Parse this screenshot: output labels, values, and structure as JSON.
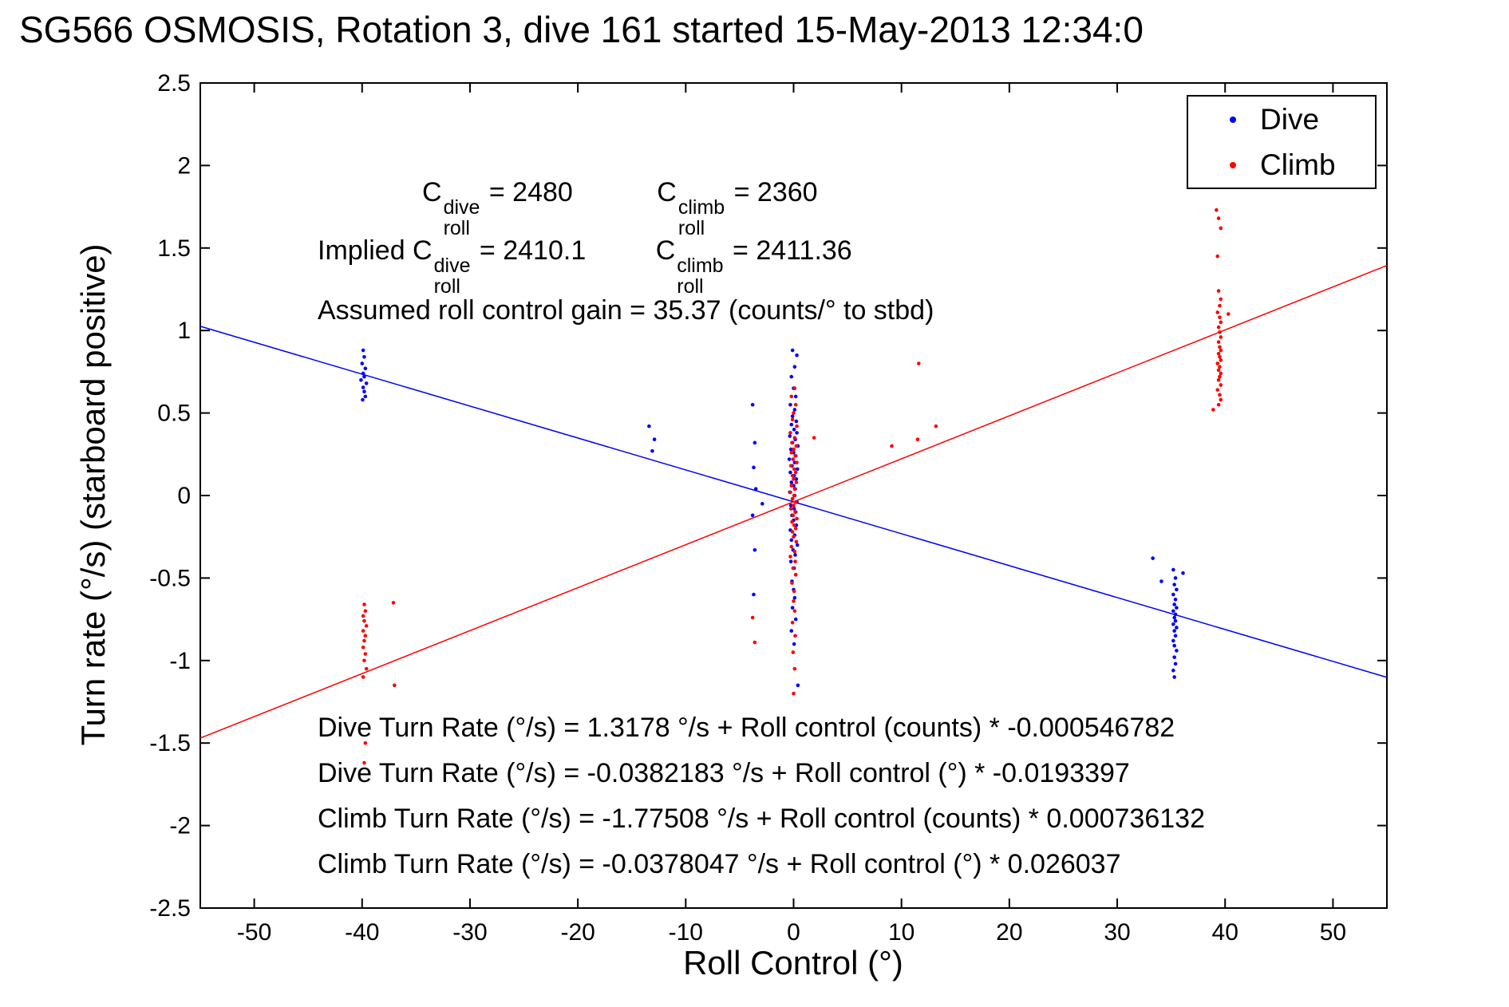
{
  "title": "SG566 OSMOSIS, Rotation 3, dive 161 started 15-May-2013 12:34:0",
  "axes": {
    "xlabel": "Roll Control (°)",
    "ylabel": "Turn rate (°/s) (starboard positive)"
  },
  "legend": {
    "items": [
      {
        "label": "Dive",
        "color": "#0000ff"
      },
      {
        "label": "Climb",
        "color": "#ff0000"
      }
    ]
  },
  "annotations": {
    "row1": {
      "dive": {
        "prefix": "C",
        "sup": "dive",
        "sub": "roll",
        "value": " = 2480"
      },
      "climb": {
        "prefix": "C",
        "sup": "climb",
        "sub": "roll",
        "value": " = 2360"
      }
    },
    "row2": {
      "dive": {
        "prefix": "Implied C",
        "sup": "dive",
        "sub": "roll",
        "value": " = 2410.1"
      },
      "climb": {
        "prefix": "C",
        "sup": "climb",
        "sub": "roll",
        "value": " = 2411.36"
      }
    },
    "gain": "Assumed roll control gain = 35.37 (counts/° to stbd)",
    "equations": [
      "Dive Turn Rate (°/s) = 1.3178 °/s + Roll control (counts) * -0.000546782",
      "Dive Turn Rate (°/s) = -0.0382183 °/s + Roll control (°) * -0.0193397",
      "Climb Turn Rate (°/s) = -1.77508 °/s + Roll control (counts) * 0.000736132",
      "Climb Turn Rate (°/s) = -0.0378047 °/s + Roll control (°) * 0.026037"
    ]
  },
  "chart_data": {
    "type": "scatter",
    "title": "SG566 OSMOSIS, Rotation 3, dive 161 started 15-May-2013 12:34:0",
    "xlabel": "Roll Control (°)",
    "ylabel": "Turn rate (°/s) (starboard positive)",
    "xlim": [
      -55,
      55
    ],
    "ylim": [
      -2.5,
      2.5
    ],
    "xticks": [
      -50,
      -40,
      -30,
      -20,
      -10,
      0,
      10,
      20,
      30,
      40,
      50
    ],
    "yticks": [
      -2.5,
      -2,
      -1.5,
      -1,
      -0.5,
      0,
      0.5,
      1,
      1.5,
      2,
      2.5
    ],
    "grid": false,
    "legend_position": "top-right",
    "fit_lines": [
      {
        "name": "dive-fit",
        "color": "#0000ff",
        "intercept": -0.0382183,
        "slope": -0.0193397
      },
      {
        "name": "climb-fit",
        "color": "#ff0000",
        "intercept": -0.0378047,
        "slope": 0.026037
      }
    ],
    "series": [
      {
        "name": "Dive",
        "color": "#0000ff",
        "points": [
          [
            -39.9,
            0.88
          ],
          [
            -39.8,
            0.84
          ],
          [
            -40.0,
            0.8
          ],
          [
            -39.7,
            0.77
          ],
          [
            -39.9,
            0.74
          ],
          [
            -39.8,
            0.72
          ],
          [
            -40.1,
            0.7
          ],
          [
            -39.6,
            0.68
          ],
          [
            -39.9,
            0.655
          ],
          [
            -39.8,
            0.63
          ],
          [
            -39.7,
            0.6
          ],
          [
            -39.95,
            0.58
          ],
          [
            -13.4,
            0.42
          ],
          [
            -12.9,
            0.34
          ],
          [
            -13.1,
            0.27
          ],
          [
            -3.8,
            0.55
          ],
          [
            -3.6,
            0.32
          ],
          [
            -3.7,
            0.17
          ],
          [
            -3.5,
            0.04
          ],
          [
            -3.8,
            -0.12
          ],
          [
            -3.6,
            -0.33
          ],
          [
            -3.7,
            -0.6
          ],
          [
            -2.9,
            -0.05
          ],
          [
            -0.1,
            0.88
          ],
          [
            0.3,
            0.85
          ],
          [
            0.1,
            0.78
          ],
          [
            -0.2,
            0.72
          ],
          [
            0.0,
            0.65
          ],
          [
            0.2,
            0.6
          ],
          [
            -0.3,
            0.55
          ],
          [
            0.1,
            0.52
          ],
          [
            -0.1,
            0.48
          ],
          [
            0.25,
            0.45
          ],
          [
            -0.2,
            0.43
          ],
          [
            0.05,
            0.4
          ],
          [
            0.3,
            0.38
          ],
          [
            -0.35,
            0.36
          ],
          [
            0.15,
            0.34
          ],
          [
            -0.1,
            0.32
          ],
          [
            0.4,
            0.3
          ],
          [
            -0.25,
            0.28
          ],
          [
            0.0,
            0.26
          ],
          [
            0.2,
            0.24
          ],
          [
            -0.4,
            0.22
          ],
          [
            0.1,
            0.2
          ],
          [
            -0.15,
            0.18
          ],
          [
            0.35,
            0.16
          ],
          [
            -0.3,
            0.14
          ],
          [
            0.05,
            0.12
          ],
          [
            0.25,
            0.1
          ],
          [
            -0.2,
            0.08
          ],
          [
            0.0,
            0.06
          ],
          [
            0.15,
            0.04
          ],
          [
            -0.35,
            0.02
          ],
          [
            0.1,
            0.0
          ],
          [
            -0.1,
            -0.02
          ],
          [
            0.3,
            -0.04
          ],
          [
            -0.25,
            -0.06
          ],
          [
            0.05,
            -0.08
          ],
          [
            0.2,
            -0.1
          ],
          [
            -0.15,
            -0.12
          ],
          [
            0.0,
            -0.15
          ],
          [
            0.25,
            -0.18
          ],
          [
            -0.3,
            -0.21
          ],
          [
            0.1,
            -0.24
          ],
          [
            -0.2,
            -0.27
          ],
          [
            0.35,
            -0.3
          ],
          [
            -0.05,
            -0.33
          ],
          [
            0.15,
            -0.36
          ],
          [
            -0.25,
            -0.4
          ],
          [
            0.05,
            -0.44
          ],
          [
            0.2,
            -0.48
          ],
          [
            -0.15,
            -0.52
          ],
          [
            0.0,
            -0.57
          ],
          [
            0.1,
            -0.62
          ],
          [
            -0.1,
            -0.68
          ],
          [
            0.2,
            -0.75
          ],
          [
            -0.2,
            -0.82
          ],
          [
            0.05,
            -0.9
          ],
          [
            0.4,
            -1.15
          ],
          [
            33.3,
            -0.38
          ],
          [
            34.1,
            -0.52
          ],
          [
            36.1,
            -0.47
          ],
          [
            35.2,
            -0.45
          ],
          [
            35.4,
            -0.5
          ],
          [
            35.3,
            -0.54
          ],
          [
            35.5,
            -0.57
          ],
          [
            35.2,
            -0.6
          ],
          [
            35.4,
            -0.63
          ],
          [
            35.3,
            -0.66
          ],
          [
            35.5,
            -0.68
          ],
          [
            35.2,
            -0.7
          ],
          [
            35.4,
            -0.72
          ],
          [
            35.3,
            -0.74
          ],
          [
            35.4,
            -0.76
          ],
          [
            35.2,
            -0.78
          ],
          [
            35.5,
            -0.8
          ],
          [
            35.3,
            -0.82
          ],
          [
            35.4,
            -0.85
          ],
          [
            35.2,
            -0.88
          ],
          [
            35.3,
            -0.91
          ],
          [
            35.5,
            -0.94
          ],
          [
            35.3,
            -0.98
          ],
          [
            35.4,
            -1.02
          ],
          [
            35.2,
            -1.06
          ],
          [
            35.3,
            -1.1
          ]
        ]
      },
      {
        "name": "Climb",
        "color": "#ff0000",
        "points": [
          [
            -39.8,
            -0.66
          ],
          [
            -39.7,
            -0.7
          ],
          [
            -39.9,
            -0.73
          ],
          [
            -39.8,
            -0.76
          ],
          [
            -39.6,
            -0.79
          ],
          [
            -39.9,
            -0.82
          ],
          [
            -39.7,
            -0.85
          ],
          [
            -39.8,
            -0.88
          ],
          [
            -39.9,
            -0.92
          ],
          [
            -39.7,
            -0.96
          ],
          [
            -39.8,
            -1.0
          ],
          [
            -39.6,
            -1.05
          ],
          [
            -39.9,
            -1.1
          ],
          [
            -37.1,
            -0.65
          ],
          [
            -37.0,
            -1.15
          ],
          [
            -39.7,
            -1.5
          ],
          [
            -39.8,
            -1.62
          ],
          [
            -3.8,
            -0.74
          ],
          [
            -3.6,
            -0.89
          ],
          [
            0.1,
            0.65
          ],
          [
            -0.2,
            0.6
          ],
          [
            0.2,
            0.55
          ],
          [
            0.0,
            0.5
          ],
          [
            -0.1,
            0.46
          ],
          [
            0.3,
            0.42
          ],
          [
            -0.3,
            0.38
          ],
          [
            0.1,
            0.35
          ],
          [
            -0.15,
            0.32
          ],
          [
            0.25,
            0.3
          ],
          [
            0.0,
            0.28
          ],
          [
            -0.2,
            0.26
          ],
          [
            0.15,
            0.24
          ],
          [
            -0.05,
            0.22
          ],
          [
            0.3,
            0.2
          ],
          [
            -0.25,
            0.18
          ],
          [
            0.05,
            0.16
          ],
          [
            0.2,
            0.14
          ],
          [
            -0.1,
            0.12
          ],
          [
            0.0,
            0.1
          ],
          [
            0.25,
            0.08
          ],
          [
            -0.2,
            0.06
          ],
          [
            0.1,
            0.04
          ],
          [
            -0.3,
            0.02
          ],
          [
            0.05,
            0.0
          ],
          [
            -0.1,
            -0.02
          ],
          [
            0.2,
            -0.04
          ],
          [
            0.0,
            -0.06
          ],
          [
            -0.25,
            -0.08
          ],
          [
            0.15,
            -0.1
          ],
          [
            -0.05,
            -0.12
          ],
          [
            0.3,
            -0.14
          ],
          [
            -0.15,
            -0.16
          ],
          [
            0.05,
            -0.18
          ],
          [
            0.2,
            -0.2
          ],
          [
            -0.1,
            -0.22
          ],
          [
            0.0,
            -0.25
          ],
          [
            0.25,
            -0.28
          ],
          [
            -0.2,
            -0.31
          ],
          [
            0.1,
            -0.34
          ],
          [
            -0.3,
            -0.37
          ],
          [
            0.15,
            -0.4
          ],
          [
            -0.05,
            -0.44
          ],
          [
            0.2,
            -0.48
          ],
          [
            -0.15,
            -0.53
          ],
          [
            0.05,
            -0.58
          ],
          [
            0.0,
            -0.64
          ],
          [
            0.1,
            -0.7
          ],
          [
            -0.1,
            -0.77
          ],
          [
            0.15,
            -0.85
          ],
          [
            -0.05,
            -0.95
          ],
          [
            0.1,
            -1.05
          ],
          [
            0.0,
            -1.2
          ],
          [
            1.9,
            0.35
          ],
          [
            9.1,
            0.3
          ],
          [
            11.5,
            0.34
          ],
          [
            11.6,
            0.8
          ],
          [
            13.2,
            0.42
          ],
          [
            38.9,
            0.52
          ],
          [
            40.3,
            1.1
          ],
          [
            39.4,
            0.55
          ],
          [
            39.6,
            0.58
          ],
          [
            39.5,
            0.61
          ],
          [
            39.3,
            0.64
          ],
          [
            39.6,
            0.67
          ],
          [
            39.4,
            0.7
          ],
          [
            39.5,
            0.72
          ],
          [
            39.6,
            0.74
          ],
          [
            39.4,
            0.76
          ],
          [
            39.5,
            0.78
          ],
          [
            39.3,
            0.8
          ],
          [
            39.6,
            0.82
          ],
          [
            39.5,
            0.84
          ],
          [
            39.4,
            0.86
          ],
          [
            39.6,
            0.88
          ],
          [
            39.5,
            0.9
          ],
          [
            39.4,
            0.93
          ],
          [
            39.6,
            0.96
          ],
          [
            39.5,
            0.99
          ],
          [
            39.4,
            1.02
          ],
          [
            39.6,
            1.05
          ],
          [
            39.5,
            1.08
          ],
          [
            39.3,
            1.11
          ],
          [
            39.5,
            1.15
          ],
          [
            39.6,
            1.19
          ],
          [
            39.4,
            1.24
          ],
          [
            39.3,
            1.45
          ],
          [
            39.6,
            1.62
          ],
          [
            39.4,
            1.68
          ],
          [
            39.2,
            1.73
          ]
        ]
      }
    ]
  }
}
